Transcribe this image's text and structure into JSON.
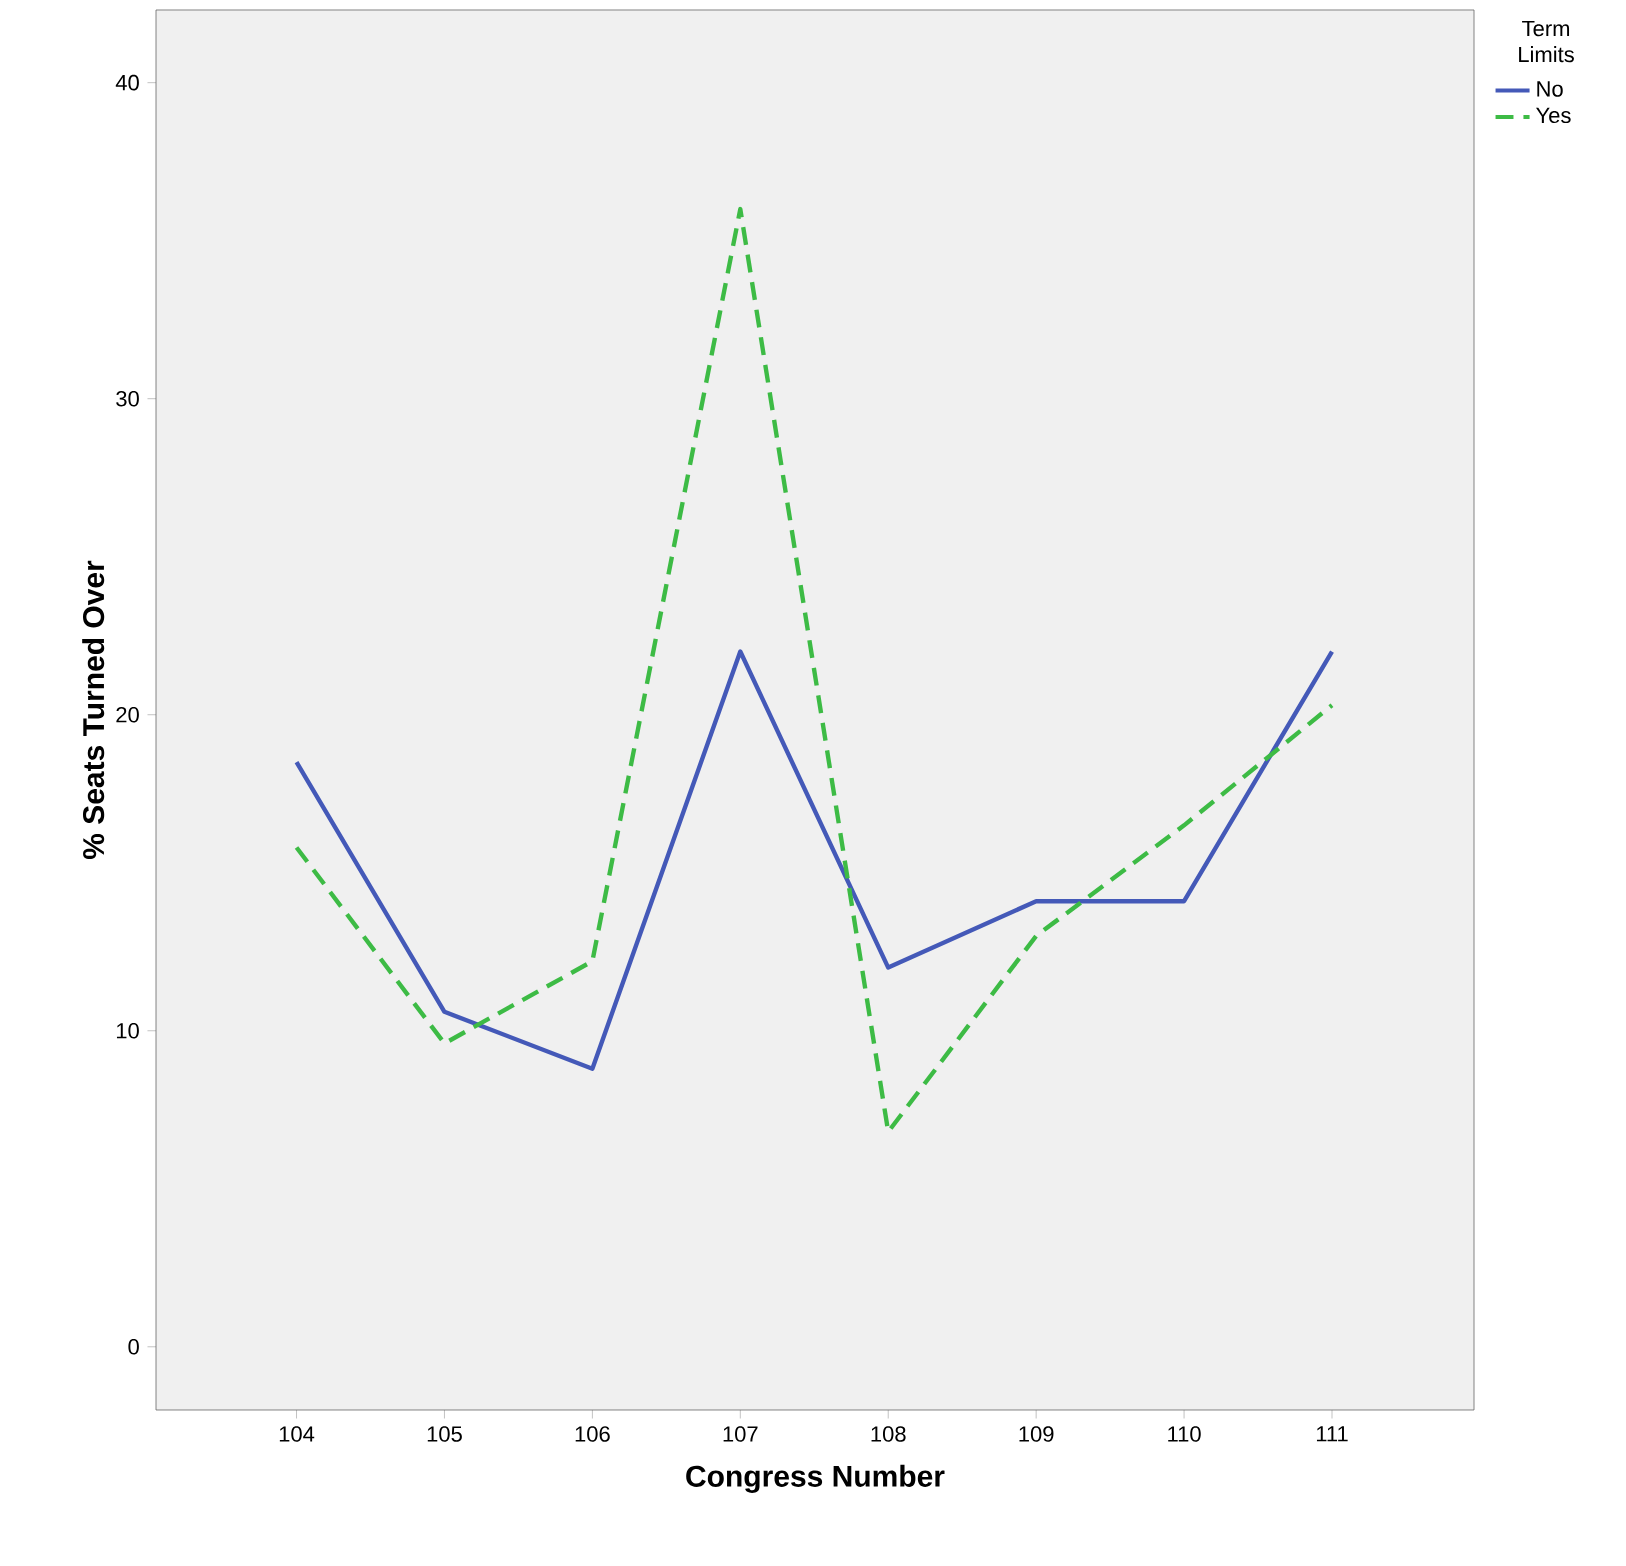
{
  "chart_data": {
    "type": "line",
    "xlabel": "Congress Number",
    "ylabel": "% Seats Turned Over",
    "legend_title": "Term Limits",
    "legend": "right",
    "grid": false,
    "marker": "none",
    "categories": [
      "104",
      "105",
      "106",
      "107",
      "108",
      "109",
      "110",
      "111"
    ],
    "ylim": [
      -2,
      42.3
    ],
    "yticks": [
      0,
      10,
      20,
      30,
      40
    ],
    "series": [
      {
        "name": "No",
        "color": "#4459b8",
        "line_style": "solid",
        "values": [
          18.5,
          10.6,
          8.8,
          22.0,
          12.0,
          14.1,
          14.1,
          22.0
        ]
      },
      {
        "name": "Yes",
        "color": "#3dbb45",
        "line_style": "dashed",
        "values": [
          15.8,
          9.6,
          12.2,
          36.0,
          6.8,
          13.0,
          16.5,
          20.3
        ]
      }
    ]
  }
}
